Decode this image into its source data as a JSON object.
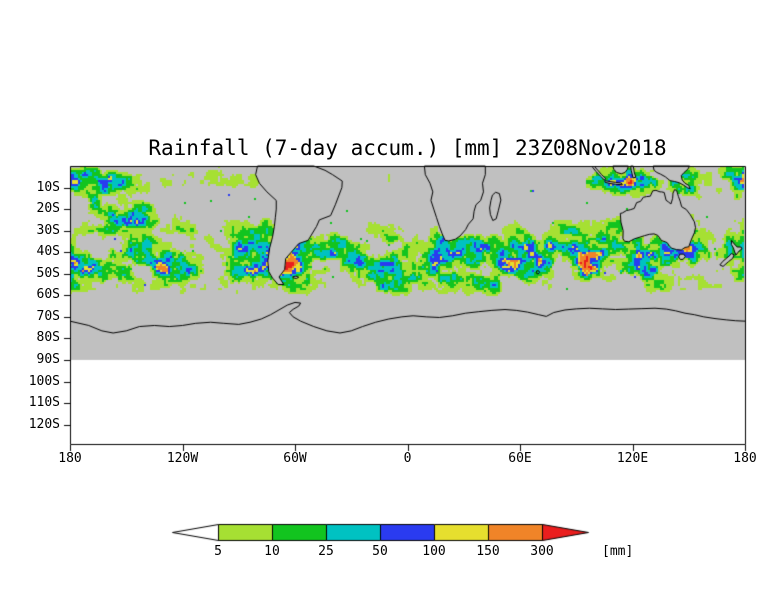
{
  "title": "Rainfall (7-day accum.) [mm] 23Z08Nov2018",
  "axes": {
    "y_ticks": [
      "10S",
      "20S",
      "30S",
      "40S",
      "50S",
      "60S",
      "70S",
      "80S",
      "90S",
      "100S",
      "110S",
      "120S"
    ],
    "x_ticks": [
      "180",
      "120W",
      "60W",
      "0",
      "60E",
      "120E",
      "180"
    ]
  },
  "colorbar": {
    "unit": "[mm]",
    "tick_labels": [
      "5",
      "10",
      "25",
      "50",
      "100",
      "150",
      "300"
    ],
    "segment_colors": [
      "#ffffff",
      "#a6e033",
      "#12c41f",
      "#00c2c2",
      "#2a3bf0",
      "#e6df2e",
      "#f08428",
      "#ea1e1e"
    ]
  },
  "map": {
    "nodata_color": "#c0c0c0",
    "outline_color": "#000000",
    "background_color": "#ffffff"
  },
  "chart_data": {
    "type": "heatmap",
    "title": "Rainfall (7-day accum.) [mm] 23Z08Nov2018",
    "variable": "7-day accumulated rainfall",
    "valid_time": "23Z08Nov2018",
    "unit": "mm",
    "x_axis": {
      "tick_labels": [
        "180",
        "120W",
        "60W",
        "0",
        "60E",
        "120E",
        "180"
      ],
      "lon_range_deg": [
        -180,
        180
      ]
    },
    "y_axis": {
      "tick_labels": [
        "10S",
        "20S",
        "30S",
        "40S",
        "50S",
        "60S",
        "70S",
        "80S",
        "90S",
        "100S",
        "110S",
        "120S"
      ],
      "lat_range_deg": [
        0,
        -130
      ]
    },
    "data_coverage_lat_deg": [
      0,
      -90
    ],
    "levels_mm": [
      5,
      10,
      25,
      50,
      100,
      150,
      300
    ],
    "level_bins": [
      "5-10",
      "10-25",
      "25-50",
      "50-100",
      "100-150",
      "150-300",
      ">300"
    ],
    "level_colors": [
      "#a6e033",
      "#12c41f",
      "#00c2c2",
      "#2a3bf0",
      "#e6df2e",
      "#f08428",
      "#ea1e1e"
    ],
    "below_scale_color": "#ffffff",
    "no_data_color": "#c0c0c0",
    "grid": false,
    "legend_position": "bottom",
    "visible_features": [
      "Continuous zonal storm-track band of rainfall at all longitudes between about 25S and 62S, mostly 5-50 mm (greens/teal) with embedded 50-300+ mm cores (blue/yellow/orange/red)",
      "Heavy tropical rainfall near 0-15S over the western Pacific / Maritime Continent (120E-180) and the south-central Pacific (180-140W), including 150-300+ mm orange/red cells",
      "Scattered tropical rainfall 0-15S across the Indian Ocean (50E-100E)",
      "Gray no-data background from the equator to 90S; continents (South America, Africa, Madagascar, Australia, New Zealand, New Guinea) outlined with no data over land",
      "Antarctic coastline outlined near 63S-78S; plot area south of 90S is blank white"
    ]
  }
}
